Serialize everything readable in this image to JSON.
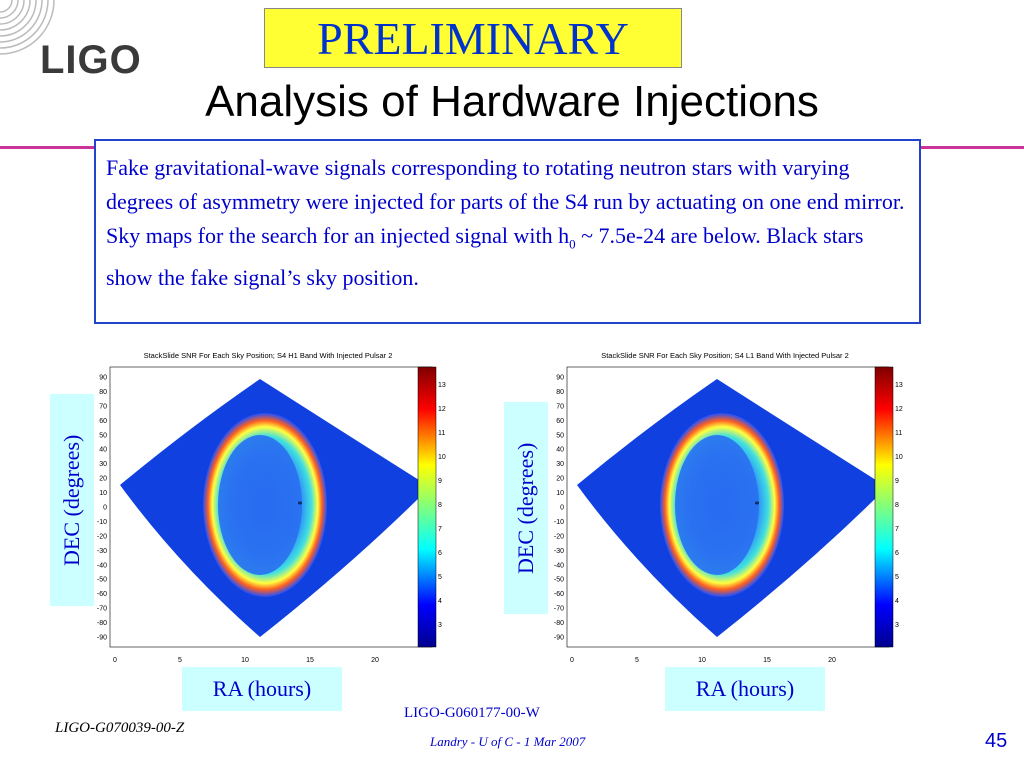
{
  "header": {
    "logo_text": "LIGO",
    "preliminary": "PRELIMINARY",
    "title": "Analysis of Hardware Injections"
  },
  "body_text": {
    "part1": "Fake gravitational-wave signals corresponding to rotating neutron stars with varying degrees of asymmetry were injected for parts of the S4 run by actuating on one end mirror.  Sky maps for the search for an injected signal with h",
    "subscript": "0",
    "part2": " ~ 7.5e-24 are below. Black stars show the fake signal’s sky position."
  },
  "plots": [
    {
      "title": "StackSlide SNR For Each Sky Position; S4 H1 Band With Injected Pulsar 2",
      "yticks": [
        "90",
        "80",
        "70",
        "60",
        "50",
        "40",
        "30",
        "20",
        "10",
        "0",
        "-10",
        "-20",
        "-30",
        "-40",
        "-50",
        "-60",
        "-70",
        "-80",
        "-90"
      ],
      "xticks": [
        "0",
        "5",
        "10",
        "15",
        "20"
      ],
      "colorbar_ticks": [
        "13",
        "12",
        "11",
        "10",
        "9",
        "8",
        "7",
        "6",
        "5",
        "4",
        "3"
      ]
    },
    {
      "title": "StackSlide SNR For Each Sky Position; S4 L1 Band With Injected Pulsar 2",
      "yticks": [
        "90",
        "80",
        "70",
        "60",
        "50",
        "40",
        "30",
        "20",
        "10",
        "0",
        "-10",
        "-20",
        "-30",
        "-40",
        "-50",
        "-60",
        "-70",
        "-80",
        "-90"
      ],
      "xticks": [
        "0",
        "5",
        "10",
        "15",
        "20"
      ],
      "colorbar_ticks": [
        "13",
        "12",
        "11",
        "10",
        "9",
        "8",
        "7",
        "6",
        "5",
        "4",
        "3"
      ]
    }
  ],
  "axis_labels": {
    "dec": "DEC (degrees)",
    "ra": "RA (hours)"
  },
  "footer": {
    "doc_id_left": "LIGO-G070039-00-Z",
    "doc_id_mid": "LIGO-G060177-00-W",
    "author": "Landry - U of C - 1 Mar 2007",
    "page": "45"
  },
  "colors": {
    "title_blue": "#0000cc",
    "rule_magenta": "#cc3399",
    "prelim_yellow": "#ffff33",
    "label_bg": "#ccffff"
  }
}
